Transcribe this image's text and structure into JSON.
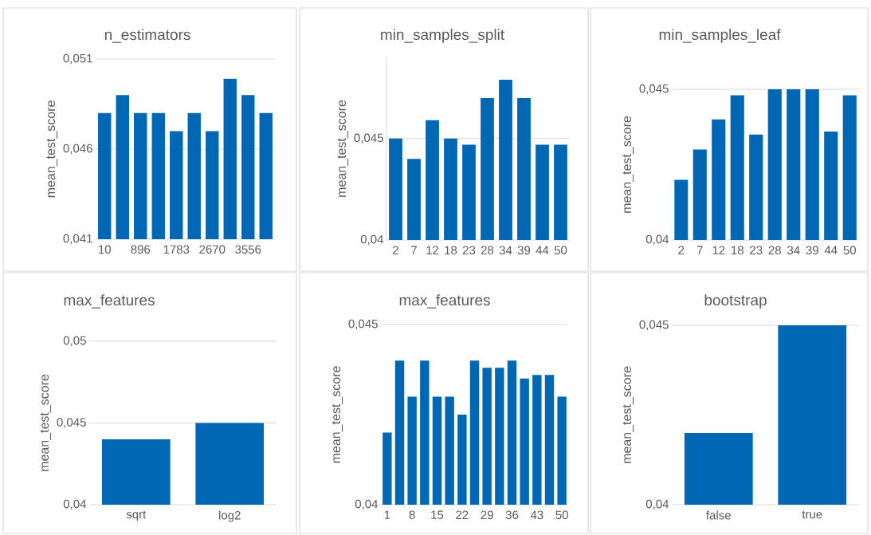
{
  "chart_data": [
    {
      "type": "bar",
      "title": "n_estimators",
      "ylabel": "mean_test_score",
      "categories": [
        "10",
        null,
        "896",
        null,
        "1783",
        null,
        "2670",
        null,
        "3556",
        null
      ],
      "values": [
        0.048,
        0.049,
        0.048,
        0.048,
        0.047,
        0.048,
        0.047,
        0.0499,
        0.049,
        0.048
      ],
      "color": "#0067b4",
      "ylim": [
        0.041,
        0.051
      ],
      "yticks": [
        {
          "value": 0.041,
          "label": "0,041"
        },
        {
          "value": 0.046,
          "label": "0,046"
        },
        {
          "value": 0.051,
          "label": "0,051"
        }
      ],
      "grid": "y"
    },
    {
      "type": "bar",
      "title": "min_samples_split",
      "ylabel": "mean_test_score",
      "categories": [
        "2",
        "7",
        "12",
        "18",
        "23",
        "28",
        "34",
        "39",
        "44",
        "50"
      ],
      "values": [
        0.045,
        0.044,
        0.0459,
        0.045,
        0.0447,
        0.047,
        0.0479,
        0.047,
        0.0447,
        0.0447
      ],
      "color": "#0067b4",
      "ylim": [
        0.04,
        0.049
      ],
      "yticks": [
        {
          "value": 0.04,
          "label": "0,04"
        },
        {
          "value": 0.045,
          "label": "0,045"
        }
      ],
      "grid": "y"
    },
    {
      "type": "bar",
      "title": "min_samples_leaf",
      "ylabel": "mean_test_score",
      "categories": [
        "2",
        "7",
        "12",
        "18",
        "23",
        "28",
        "34",
        "39",
        "44",
        "50"
      ],
      "values": [
        0.042,
        0.043,
        0.044,
        0.0448,
        0.0435,
        0.045,
        0.045,
        0.045,
        0.0436,
        0.0448
      ],
      "color": "#0067b4",
      "ylim": [
        0.04,
        0.045
      ],
      "yticks": [
        {
          "value": 0.04,
          "label": "0,04"
        },
        {
          "value": 0.045,
          "label": "0,045"
        }
      ]
    },
    {
      "type": "bar",
      "title": "max_features",
      "ylabel": "mean_test_score",
      "categories": [
        "sqrt",
        "log2"
      ],
      "values": [
        0.044,
        0.045
      ],
      "color": "#0067b4",
      "ylim": [
        0.04,
        0.05
      ],
      "yticks": [
        {
          "value": 0.04,
          "label": "0,04"
        },
        {
          "value": 0.045,
          "label": "0,045"
        },
        {
          "value": 0.05,
          "label": "0,05"
        }
      ],
      "grid": "y"
    },
    {
      "type": "bar",
      "title": "max_features",
      "ylabel": "mean_test_score",
      "categories": [
        "1",
        null,
        "8",
        null,
        "15",
        null,
        "22",
        null,
        "29",
        null,
        "36",
        null,
        "43",
        null,
        "50"
      ],
      "values": [
        0.042,
        0.044,
        0.043,
        0.044,
        0.043,
        0.043,
        0.0425,
        0.044,
        0.0438,
        0.0438,
        0.044,
        0.0435,
        0.0436,
        0.0436,
        0.043
      ],
      "color": "#0067b4",
      "ylim": [
        0.04,
        0.045
      ],
      "yticks": [
        {
          "value": 0.04,
          "label": "0,04"
        },
        {
          "value": 0.045,
          "label": "0,045"
        }
      ]
    },
    {
      "type": "bar",
      "title": "bootstrap",
      "ylabel": "mean_test_score",
      "categories": [
        "false",
        "true"
      ],
      "values": [
        0.042,
        0.045
      ],
      "color": "#0067b4",
      "ylim": [
        0.04,
        0.045
      ],
      "yticks": [
        {
          "value": 0.04,
          "label": "0,04"
        },
        {
          "value": 0.045,
          "label": "0,045"
        }
      ]
    }
  ]
}
